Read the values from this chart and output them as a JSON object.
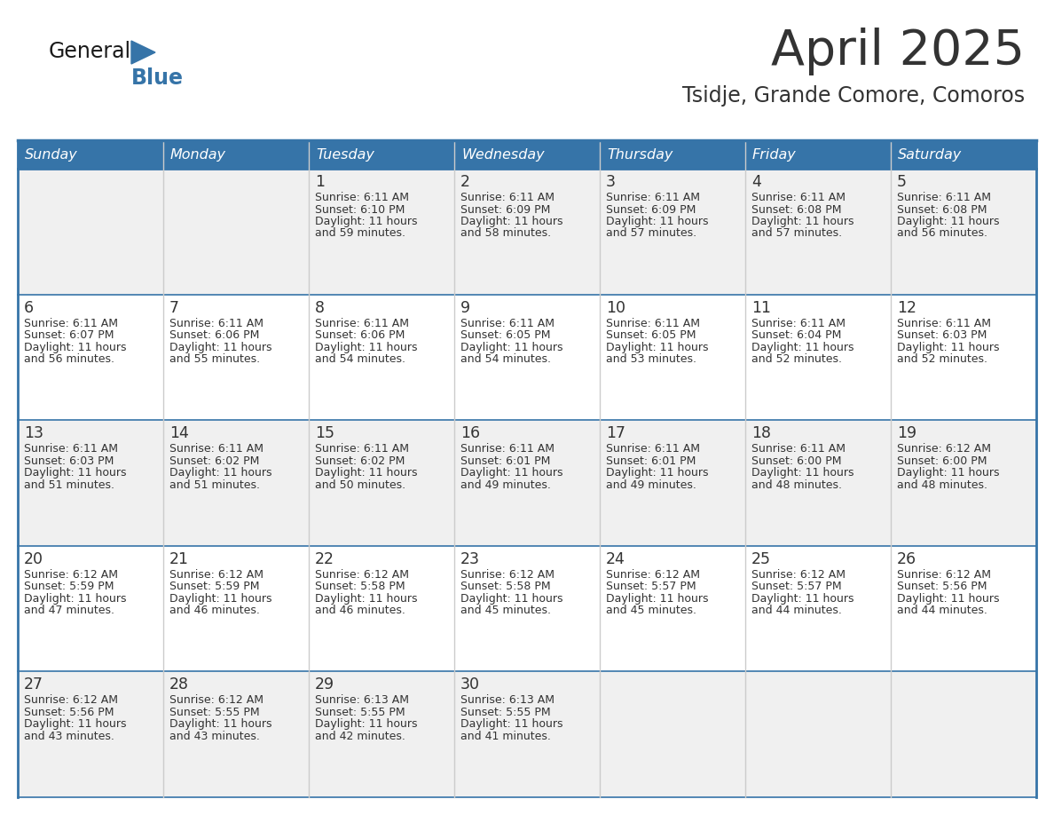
{
  "title": "April 2025",
  "subtitle": "Tsidje, Grande Comore, Comoros",
  "days_of_week": [
    "Sunday",
    "Monday",
    "Tuesday",
    "Wednesday",
    "Thursday",
    "Friday",
    "Saturday"
  ],
  "header_bg": "#3674a8",
  "header_text_color": "#FFFFFF",
  "cell_bg_odd": "#F0F0F0",
  "cell_bg_even": "#FFFFFF",
  "line_color": "#3674a8",
  "text_color": "#333333",
  "logo_general_color": "#1a1a1a",
  "logo_blue_color": "#3674a8",
  "calendar_data": [
    [
      {
        "day": null,
        "sunrise": null,
        "sunset": null,
        "daylight": null
      },
      {
        "day": null,
        "sunrise": null,
        "sunset": null,
        "daylight": null
      },
      {
        "day": 1,
        "sunrise": "6:11 AM",
        "sunset": "6:10 PM",
        "daylight": "11 hours and 59 minutes"
      },
      {
        "day": 2,
        "sunrise": "6:11 AM",
        "sunset": "6:09 PM",
        "daylight": "11 hours and 58 minutes"
      },
      {
        "day": 3,
        "sunrise": "6:11 AM",
        "sunset": "6:09 PM",
        "daylight": "11 hours and 57 minutes"
      },
      {
        "day": 4,
        "sunrise": "6:11 AM",
        "sunset": "6:08 PM",
        "daylight": "11 hours and 57 minutes"
      },
      {
        "day": 5,
        "sunrise": "6:11 AM",
        "sunset": "6:08 PM",
        "daylight": "11 hours and 56 minutes"
      }
    ],
    [
      {
        "day": 6,
        "sunrise": "6:11 AM",
        "sunset": "6:07 PM",
        "daylight": "11 hours and 56 minutes"
      },
      {
        "day": 7,
        "sunrise": "6:11 AM",
        "sunset": "6:06 PM",
        "daylight": "11 hours and 55 minutes"
      },
      {
        "day": 8,
        "sunrise": "6:11 AM",
        "sunset": "6:06 PM",
        "daylight": "11 hours and 54 minutes"
      },
      {
        "day": 9,
        "sunrise": "6:11 AM",
        "sunset": "6:05 PM",
        "daylight": "11 hours and 54 minutes"
      },
      {
        "day": 10,
        "sunrise": "6:11 AM",
        "sunset": "6:05 PM",
        "daylight": "11 hours and 53 minutes"
      },
      {
        "day": 11,
        "sunrise": "6:11 AM",
        "sunset": "6:04 PM",
        "daylight": "11 hours and 52 minutes"
      },
      {
        "day": 12,
        "sunrise": "6:11 AM",
        "sunset": "6:03 PM",
        "daylight": "11 hours and 52 minutes"
      }
    ],
    [
      {
        "day": 13,
        "sunrise": "6:11 AM",
        "sunset": "6:03 PM",
        "daylight": "11 hours and 51 minutes"
      },
      {
        "day": 14,
        "sunrise": "6:11 AM",
        "sunset": "6:02 PM",
        "daylight": "11 hours and 51 minutes"
      },
      {
        "day": 15,
        "sunrise": "6:11 AM",
        "sunset": "6:02 PM",
        "daylight": "11 hours and 50 minutes"
      },
      {
        "day": 16,
        "sunrise": "6:11 AM",
        "sunset": "6:01 PM",
        "daylight": "11 hours and 49 minutes"
      },
      {
        "day": 17,
        "sunrise": "6:11 AM",
        "sunset": "6:01 PM",
        "daylight": "11 hours and 49 minutes"
      },
      {
        "day": 18,
        "sunrise": "6:11 AM",
        "sunset": "6:00 PM",
        "daylight": "11 hours and 48 minutes"
      },
      {
        "day": 19,
        "sunrise": "6:12 AM",
        "sunset": "6:00 PM",
        "daylight": "11 hours and 48 minutes"
      }
    ],
    [
      {
        "day": 20,
        "sunrise": "6:12 AM",
        "sunset": "5:59 PM",
        "daylight": "11 hours and 47 minutes"
      },
      {
        "day": 21,
        "sunrise": "6:12 AM",
        "sunset": "5:59 PM",
        "daylight": "11 hours and 46 minutes"
      },
      {
        "day": 22,
        "sunrise": "6:12 AM",
        "sunset": "5:58 PM",
        "daylight": "11 hours and 46 minutes"
      },
      {
        "day": 23,
        "sunrise": "6:12 AM",
        "sunset": "5:58 PM",
        "daylight": "11 hours and 45 minutes"
      },
      {
        "day": 24,
        "sunrise": "6:12 AM",
        "sunset": "5:57 PM",
        "daylight": "11 hours and 45 minutes"
      },
      {
        "day": 25,
        "sunrise": "6:12 AM",
        "sunset": "5:57 PM",
        "daylight": "11 hours and 44 minutes"
      },
      {
        "day": 26,
        "sunrise": "6:12 AM",
        "sunset": "5:56 PM",
        "daylight": "11 hours and 44 minutes"
      }
    ],
    [
      {
        "day": 27,
        "sunrise": "6:12 AM",
        "sunset": "5:56 PM",
        "daylight": "11 hours and 43 minutes"
      },
      {
        "day": 28,
        "sunrise": "6:12 AM",
        "sunset": "5:55 PM",
        "daylight": "11 hours and 43 minutes"
      },
      {
        "day": 29,
        "sunrise": "6:13 AM",
        "sunset": "5:55 PM",
        "daylight": "11 hours and 42 minutes"
      },
      {
        "day": 30,
        "sunrise": "6:13 AM",
        "sunset": "5:55 PM",
        "daylight": "11 hours and 41 minutes"
      },
      {
        "day": null,
        "sunrise": null,
        "sunset": null,
        "daylight": null
      },
      {
        "day": null,
        "sunrise": null,
        "sunset": null,
        "daylight": null
      },
      {
        "day": null,
        "sunrise": null,
        "sunset": null,
        "daylight": null
      }
    ]
  ]
}
